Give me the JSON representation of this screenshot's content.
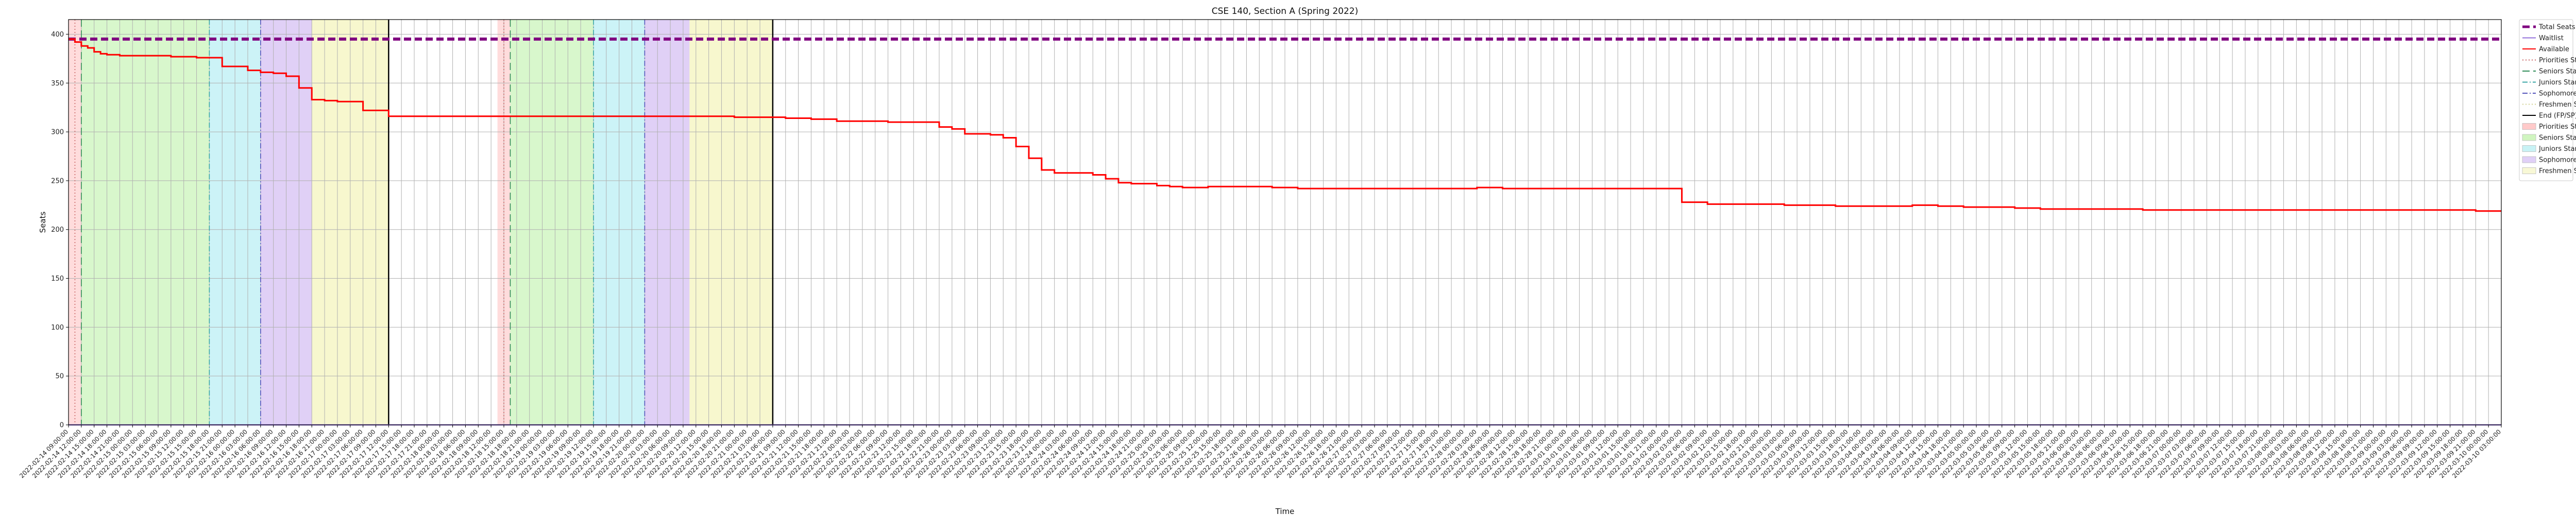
{
  "chart_data": {
    "type": "line",
    "title": "CSE 140, Section A (Spring 2022)",
    "xlabel": "Time",
    "ylabel": "Seats",
    "ylim": [
      0,
      415
    ],
    "yticks": [
      0,
      50,
      100,
      150,
      200,
      250,
      300,
      350,
      400
    ],
    "grid": true,
    "legend_placement": "outside-top-right",
    "x_index_range": [
      0,
      380
    ],
    "x_tick_every": 2,
    "x_ticks_first_labels": [
      "2022-02-14 09:00:00",
      "2022-02-14 12:00:00",
      "2022-02-14 15:00:00",
      "2022-02-14 18:00:00"
    ],
    "x_tick_label_note": "one tick every 3 hours from 2022-02-14 09:00 through 2022-04-08 03:00",
    "series": [
      {
        "name": "Total Seats",
        "color": "#800080",
        "style": "dashed",
        "x": [
          0,
          380
        ],
        "values": [
          395,
          395
        ]
      },
      {
        "name": "Waitlist",
        "color": "#9370db",
        "style": "solid",
        "x": [
          0,
          380
        ],
        "values": [
          0,
          0
        ]
      },
      {
        "name": "Available",
        "color": "#ff0000",
        "style": "solid",
        "x": [
          0,
          1,
          2,
          3,
          4,
          5,
          6,
          8,
          12,
          16,
          18,
          20,
          24,
          28,
          30,
          32,
          34,
          36,
          38,
          40,
          42,
          44,
          46,
          50,
          54,
          56,
          58,
          60,
          62,
          64,
          66,
          68,
          72,
          76,
          80,
          84,
          88,
          92,
          96,
          100,
          104,
          108,
          112,
          116,
          120,
          124,
          128,
          132,
          136,
          138,
          140,
          142,
          144,
          146,
          148,
          150,
          152,
          154,
          156,
          158,
          160,
          162,
          164,
          166,
          168,
          170,
          172,
          174,
          176,
          178,
          180,
          184,
          188,
          192,
          196,
          200,
          204,
          208,
          212,
          216,
          220,
          224,
          228,
          232,
          236,
          240,
          244,
          248,
          252,
          256,
          260,
          264,
          268,
          272,
          276,
          280,
          284,
          288,
          292,
          296,
          300,
          304,
          308,
          312,
          316,
          320,
          324,
          328,
          332,
          336,
          340,
          344,
          348,
          352,
          356,
          360,
          364,
          368,
          372,
          376,
          380
        ],
        "values": [
          395,
          392,
          388,
          386,
          382,
          380,
          379,
          378,
          378,
          377,
          377,
          376,
          367,
          363,
          361,
          360,
          357,
          345,
          333,
          332,
          331,
          331,
          322,
          316,
          316,
          316,
          316,
          316,
          316,
          316,
          316,
          316,
          316,
          316,
          316,
          316,
          316,
          316,
          316,
          316,
          315,
          315,
          314,
          313,
          311,
          311,
          310,
          310,
          305,
          303,
          298,
          298,
          297,
          294,
          285,
          273,
          261,
          258,
          258,
          258,
          256,
          252,
          248,
          247,
          247,
          245,
          244,
          243,
          243,
          244,
          244,
          244,
          243,
          242,
          242,
          242,
          242,
          242,
          242,
          242,
          243,
          242,
          242,
          242,
          242,
          242,
          242,
          242,
          228,
          226,
          226,
          226,
          225,
          225,
          224,
          224,
          224,
          225,
          224,
          223,
          223,
          222,
          221,
          221,
          221,
          221,
          220,
          220,
          220,
          220,
          220,
          220,
          220,
          220,
          220,
          220,
          220,
          220,
          220,
          219,
          219
        ]
      }
    ],
    "vertical_lines": [
      {
        "name": "Priorities Start",
        "color": "#c86464",
        "style": "dotted",
        "x": [
          1,
          68
        ]
      },
      {
        "name": "Seniors Start",
        "color": "#2e8b57",
        "style": "dashed",
        "x": [
          2,
          69
        ]
      },
      {
        "name": "Juniors Start",
        "color": "#3aa6a6",
        "style": "dashdot",
        "x": [
          22,
          82
        ]
      },
      {
        "name": "Sophomores Start",
        "color": "#5555bb",
        "style": "dashdot",
        "x": [
          30,
          90
        ]
      },
      {
        "name": "End (FP/SP)",
        "color": "#000000",
        "style": "solid",
        "x": [
          50,
          110
        ]
      }
    ],
    "shaded_regions": [
      {
        "name": "Priorities Start",
        "color": "#ff9a9a",
        "opacity": 0.35,
        "ranges": [
          [
            0,
            2
          ],
          [
            67,
            69
          ]
        ]
      },
      {
        "name": "Seniors Start",
        "color": "#b2ef9a",
        "opacity": 0.5,
        "ranges": [
          [
            2,
            22
          ],
          [
            69,
            82
          ]
        ]
      },
      {
        "name": "Juniors Start",
        "color": "#9ae8ef",
        "opacity": 0.5,
        "ranges": [
          [
            22,
            30
          ],
          [
            82,
            90
          ]
        ]
      },
      {
        "name": "Sophomores Start",
        "color": "#c6aaee",
        "opacity": 0.55,
        "ranges": [
          [
            30,
            38
          ],
          [
            90,
            97
          ]
        ]
      },
      {
        "name": "Freshmen Start",
        "color": "#f2f2b4",
        "opacity": 0.65,
        "ranges": [
          [
            38,
            50
          ],
          [
            97,
            110
          ]
        ]
      }
    ],
    "legend": [
      {
        "label": "Total Seats",
        "kind": "line",
        "color": "#800080",
        "style": "dashed",
        "bold": true
      },
      {
        "label": "Waitlist",
        "kind": "line",
        "color": "#9370db",
        "style": "solid"
      },
      {
        "label": "Available",
        "kind": "line",
        "color": "#ff0000",
        "style": "solid"
      },
      {
        "label": "Priorities Start",
        "kind": "line",
        "color": "#c86464",
        "style": "dotted"
      },
      {
        "label": "Seniors Start",
        "kind": "line",
        "color": "#2e8b57",
        "style": "dashed"
      },
      {
        "label": "Juniors Start",
        "kind": "line",
        "color": "#3aa6a6",
        "style": "dashdot"
      },
      {
        "label": "Sophomores Start",
        "kind": "line",
        "color": "#5555bb",
        "style": "dashdot"
      },
      {
        "label": "Freshmen Start",
        "kind": "line",
        "color": "#d0d090",
        "style": "dotted"
      },
      {
        "label": "End (FP/SP)",
        "kind": "line",
        "color": "#000000",
        "style": "solid"
      },
      {
        "label": "Priorities Start",
        "kind": "patch",
        "color": "#ffcaca"
      },
      {
        "label": "Seniors Start",
        "kind": "patch",
        "color": "#d0f5c0"
      },
      {
        "label": "Juniors Start",
        "kind": "patch",
        "color": "#c8f2f5"
      },
      {
        "label": "Sophomores Start",
        "kind": "patch",
        "color": "#e0d0f7"
      },
      {
        "label": "Freshmen Start",
        "kind": "patch",
        "color": "#f8f8d6"
      }
    ]
  }
}
